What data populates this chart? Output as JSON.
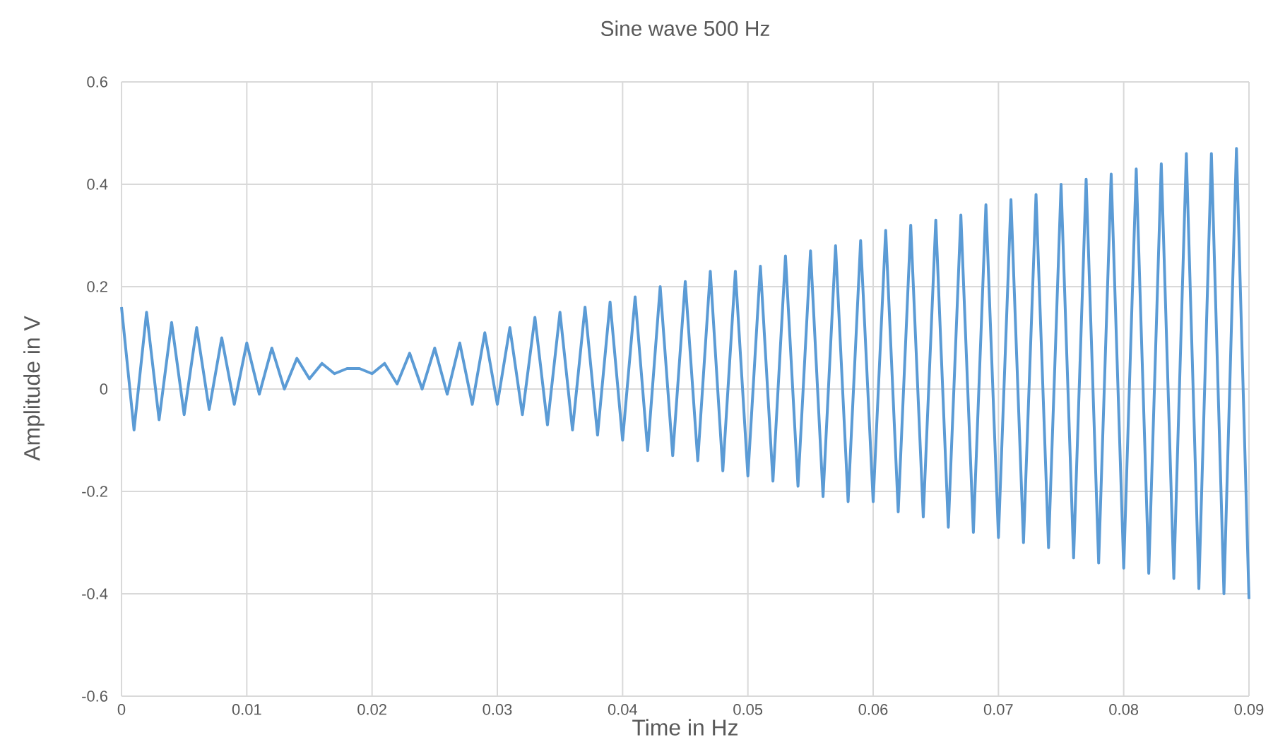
{
  "chart_data": {
    "type": "line",
    "title": "Sine wave 500 Hz",
    "xlabel": "Time in Hz",
    "ylabel": "Amplitude in V",
    "x": [
      0,
      0.001,
      0.002,
      0.003,
      0.004,
      0.005,
      0.006,
      0.007,
      0.008,
      0.009,
      0.01,
      0.011,
      0.012,
      0.013,
      0.014,
      0.015,
      0.016,
      0.017,
      0.018,
      0.019,
      0.02,
      0.021,
      0.022,
      0.023,
      0.024,
      0.025,
      0.026,
      0.027,
      0.028,
      0.029,
      0.03,
      0.031,
      0.032,
      0.033,
      0.034,
      0.035,
      0.036,
      0.037,
      0.038,
      0.039,
      0.04,
      0.041,
      0.042,
      0.043,
      0.044,
      0.045,
      0.046,
      0.047,
      0.048,
      0.049,
      0.05,
      0.051,
      0.052,
      0.053,
      0.054,
      0.055,
      0.056,
      0.057,
      0.058,
      0.059,
      0.06,
      0.061,
      0.062,
      0.063,
      0.064,
      0.065,
      0.066,
      0.067,
      0.068,
      0.069,
      0.07,
      0.071,
      0.072,
      0.073,
      0.074,
      0.075,
      0.076,
      0.077,
      0.078,
      0.079,
      0.08,
      0.081,
      0.082,
      0.083,
      0.084,
      0.085,
      0.086,
      0.087,
      0.088,
      0.089,
      0.09
    ],
    "series": [
      {
        "color": "#5b9bd5",
        "values": [
          0.16,
          -0.08,
          0.15,
          -0.06,
          0.13,
          -0.05,
          0.12,
          -0.04,
          0.1,
          -0.03,
          0.09,
          -0.01,
          0.08,
          0.0,
          0.06,
          0.02,
          0.05,
          0.03,
          0.04,
          0.04,
          0.03,
          0.05,
          0.01,
          0.07,
          0.0,
          0.08,
          -0.01,
          0.09,
          -0.03,
          0.11,
          -0.03,
          0.12,
          -0.05,
          0.14,
          -0.07,
          0.15,
          -0.08,
          0.16,
          -0.09,
          0.17,
          -0.1,
          0.18,
          -0.12,
          0.2,
          -0.13,
          0.21,
          -0.14,
          0.23,
          -0.16,
          0.23,
          -0.17,
          0.24,
          -0.18,
          0.26,
          -0.19,
          0.27,
          -0.21,
          0.28,
          -0.22,
          0.29,
          -0.22,
          0.31,
          -0.24,
          0.32,
          -0.25,
          0.33,
          -0.27,
          0.34,
          -0.28,
          0.36,
          -0.29,
          0.37,
          -0.3,
          0.38,
          -0.31,
          0.4,
          -0.33,
          0.41,
          -0.34,
          0.42,
          -0.35,
          0.43,
          -0.36,
          0.44,
          -0.37,
          0.46,
          -0.39,
          0.46,
          -0.4,
          0.47,
          -0.41
        ]
      }
    ],
    "xlim": [
      0,
      0.09
    ],
    "xticks": [
      0,
      0.01,
      0.02,
      0.03,
      0.04,
      0.05,
      0.06,
      0.07,
      0.08,
      0.09
    ],
    "ylim": [
      -0.6,
      0.6
    ],
    "yticks": [
      -0.6,
      -0.4,
      -0.2,
      0,
      0.2,
      0.4,
      0.6
    ],
    "grid": true
  }
}
